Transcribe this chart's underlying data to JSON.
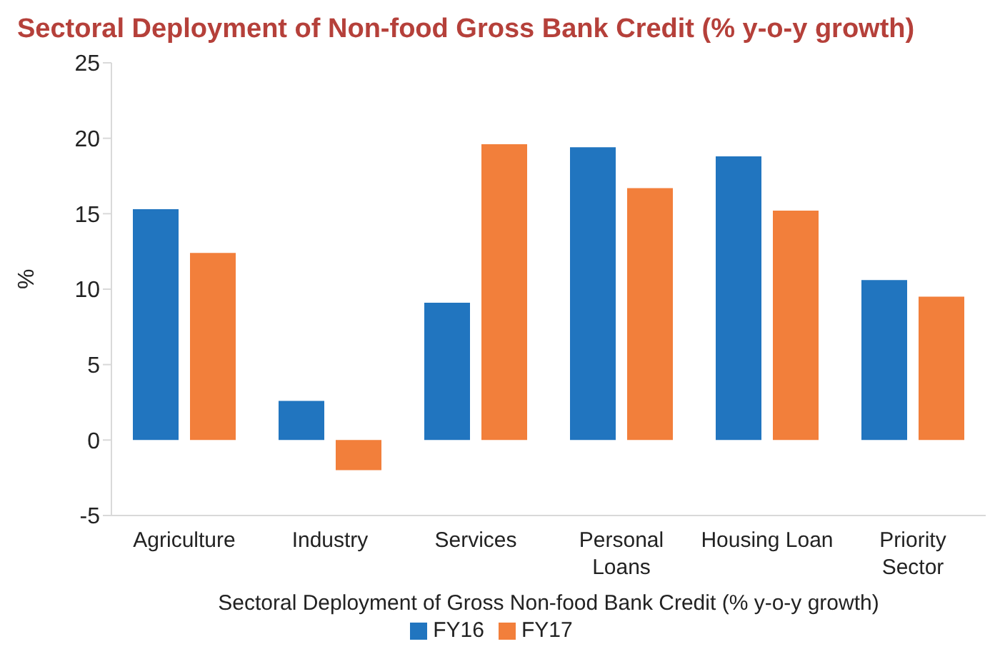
{
  "chart_data": {
    "type": "bar",
    "title": "Sectoral Deployment of Non-food Gross Bank Credit (% y-o-y growth)",
    "xlabel": "Sectoral Deployment of Gross Non-food Bank Credit (% y-o-y growth)",
    "ylabel": "%",
    "categories": [
      "Agriculture",
      "Industry",
      "Services",
      "Personal Loans",
      "Housing Loan",
      "Priority Sector"
    ],
    "series": [
      {
        "name": "FY16",
        "color": "#2175bf",
        "values": [
          15.3,
          2.6,
          9.1,
          19.4,
          18.8,
          10.6
        ]
      },
      {
        "name": "FY17",
        "color": "#f27f3b",
        "values": [
          12.4,
          -2.0,
          19.6,
          16.7,
          15.2,
          9.5
        ]
      }
    ],
    "ylim": [
      -5,
      25
    ],
    "yticks": [
      -5,
      0,
      5,
      10,
      15,
      20,
      25
    ],
    "legend": "bottom"
  }
}
